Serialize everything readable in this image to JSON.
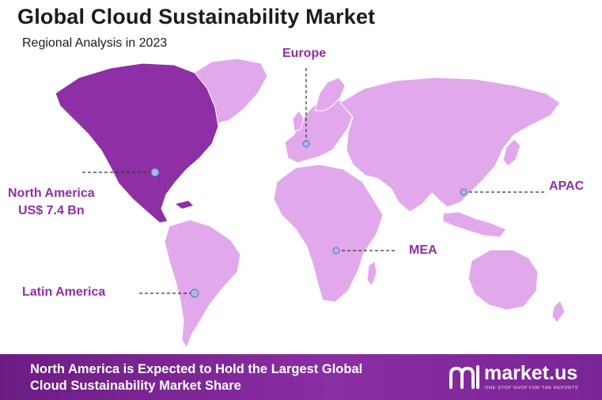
{
  "header": {
    "title": "Global Cloud Sustainability Market",
    "subtitle": "Regional Analysis in 2023"
  },
  "regions": {
    "europe": "Europe",
    "north_america": "North America",
    "north_america_value": "US$ 7.4 Bn",
    "apac": "APAC",
    "mea": "MEA",
    "latin_america": "Latin America"
  },
  "footer": {
    "headline_line1": "North America is Expected to Hold the Largest Global",
    "headline_line2": "Cloud Sustainability Market Share",
    "brand_name": "market.us",
    "brand_tagline": "ONE STOP SHOP FOR THE REPORTS"
  },
  "colors": {
    "highlight_region": "#8e2fa6",
    "other_regions": "#e2a8ec",
    "footer_bg": "#7a2596",
    "marker": "#a9b8e6"
  },
  "highlighted_region": "north_america"
}
